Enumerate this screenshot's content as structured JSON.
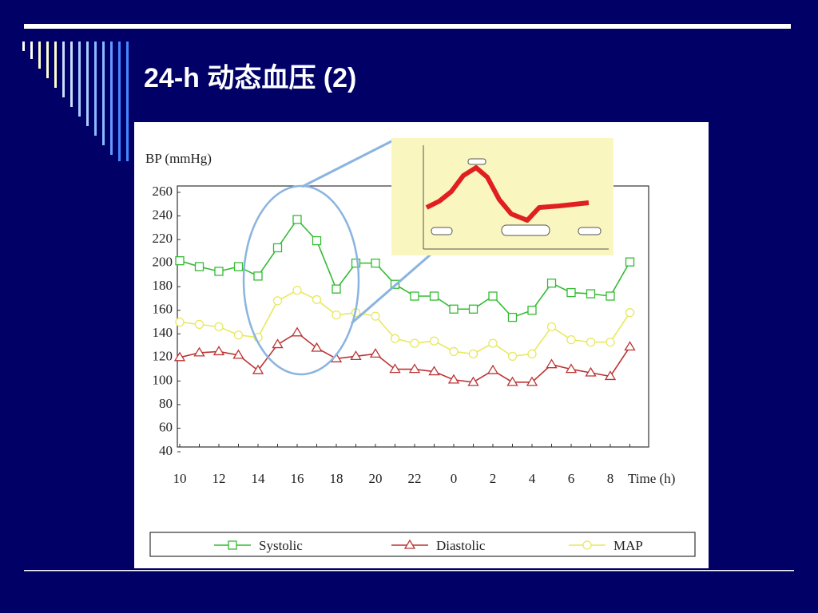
{
  "chart_data": {
    "type": "line",
    "title": "24-h 动态血压 (2)",
    "ylabel": "BP (mmHg)",
    "xlabel": "Time (h)",
    "categories": [
      "10",
      null,
      "12",
      null,
      "14",
      null,
      "16",
      null,
      "18",
      null,
      "20",
      null,
      "22",
      null,
      "0",
      null,
      "2",
      null,
      "4",
      null,
      "6",
      null,
      "8",
      null
    ],
    "ylim": [
      40,
      260
    ],
    "yticks": [
      40,
      60,
      80,
      100,
      120,
      140,
      160,
      180,
      200,
      220,
      240,
      260
    ],
    "series": [
      {
        "name": "Systolic",
        "color": "#33bb33",
        "marker": "square",
        "values": [
          202,
          197,
          193,
          197,
          189,
          213,
          237,
          219,
          178,
          200,
          200,
          182,
          172,
          172,
          161,
          161,
          172,
          154,
          160,
          183,
          175,
          174,
          172,
          201
        ]
      },
      {
        "name": "Diastolic",
        "color": "#bb3333",
        "marker": "triangle",
        "values": [
          120,
          124,
          125,
          122,
          109,
          131,
          141,
          128,
          119,
          121,
          123,
          110,
          110,
          108,
          101,
          99,
          109,
          99,
          99,
          114,
          110,
          107,
          104,
          129
        ]
      },
      {
        "name": "MAP",
        "color": "#e8e860",
        "marker": "circle",
        "values": [
          150,
          148,
          146,
          139,
          137,
          168,
          177,
          169,
          156,
          158,
          155,
          136,
          132,
          134,
          125,
          123,
          132,
          121,
          123,
          146,
          135,
          133,
          133,
          158
        ]
      }
    ]
  }
}
